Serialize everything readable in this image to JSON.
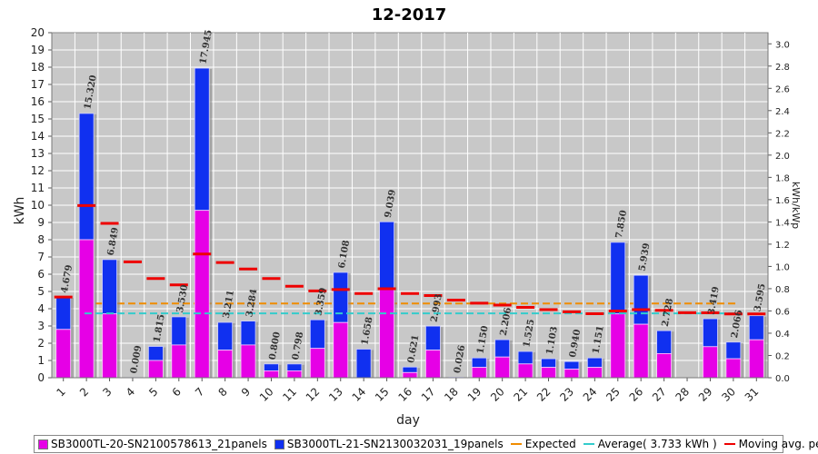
{
  "chart_data": {
    "type": "bar",
    "title": "12-2017",
    "xlabel": "day",
    "ylabel": "kWh",
    "y2label": "kWh/kWp",
    "ylim": [
      0,
      20
    ],
    "y2lim": [
      0,
      3.1
    ],
    "yticks": [
      "0",
      "1",
      "2",
      "3",
      "4",
      "5",
      "6",
      "7",
      "8",
      "9",
      "10",
      "11",
      "12",
      "13",
      "14",
      "15",
      "16",
      "17",
      "18",
      "19",
      "20"
    ],
    "y2ticks": [
      "0.0",
      "0.2",
      "0.4",
      "0.6",
      "0.8",
      "1.0",
      "1.2",
      "1.4",
      "1.6",
      "1.8",
      "2.0",
      "2.2",
      "2.4",
      "2.6",
      "2.8",
      "3.0"
    ],
    "categories": [
      "1",
      "2",
      "3",
      "4",
      "5",
      "6",
      "7",
      "8",
      "9",
      "10",
      "11",
      "12",
      "13",
      "14",
      "15",
      "16",
      "17",
      "18",
      "19",
      "20",
      "21",
      "22",
      "23",
      "24",
      "25",
      "26",
      "27",
      "28",
      "29",
      "30",
      "31"
    ],
    "totals": [
      4.679,
      15.32,
      6.849,
      0.009,
      1.815,
      3.53,
      17.945,
      3.211,
      3.284,
      0.8,
      0.798,
      3.359,
      6.108,
      1.658,
      9.039,
      0.621,
      2.993,
      0.026,
      1.15,
      2.206,
      1.525,
      1.103,
      0.94,
      1.151,
      7.85,
      5.939,
      2.728,
      0.0,
      3.419,
      2.066,
      3.595
    ],
    "total_labels": [
      "4.679",
      "15.320",
      "6.849",
      "0.009",
      "1.815",
      "3.530",
      "17.945",
      "3.211",
      "3.284",
      "0.800",
      "0.798",
      "3.359",
      "6.108",
      "1.658",
      "9.039",
      "0.621",
      "2.993",
      "0.026",
      "1.150",
      "2.206",
      "1.525",
      "1.103",
      "0.940",
      "1.151",
      "7.850",
      "5.939",
      "2.728",
      "",
      "3.419",
      "2.066",
      "3.595"
    ],
    "series": [
      {
        "name": "SB3000TL-20-SN2100578613_21panels",
        "color": "#e600e6",
        "values": [
          2.8,
          8.0,
          3.7,
          0.0,
          1.0,
          1.9,
          9.7,
          1.6,
          1.9,
          0.4,
          0.4,
          1.7,
          3.2,
          0.0,
          5.2,
          0.3,
          1.6,
          0.0,
          0.6,
          1.2,
          0.8,
          0.6,
          0.5,
          0.6,
          3.7,
          3.1,
          1.4,
          0.0,
          1.8,
          1.1,
          2.2
        ]
      },
      {
        "name": "SB3000TL-21-SN2130032031_19panels",
        "color": "#1030f0",
        "values": [
          1.879,
          7.32,
          3.149,
          0.009,
          0.815,
          1.63,
          8.245,
          1.611,
          1.384,
          0.4,
          0.398,
          1.659,
          2.908,
          1.658,
          3.839,
          0.321,
          1.393,
          0.026,
          0.55,
          1.006,
          0.725,
          0.503,
          0.44,
          0.551,
          4.15,
          2.839,
          1.328,
          0.0,
          1.619,
          0.966,
          1.395
        ]
      }
    ],
    "expected": {
      "name": "Expected",
      "value": 4.3,
      "color": "#f08c00"
    },
    "average": {
      "name": "Average",
      "label_text": "Average( 3.733 kWh )",
      "value": 3.733,
      "color": "#33cccc"
    },
    "moving_avg": {
      "name": "Moving avg. per day.",
      "color": "#ee0000",
      "values": [
        4.68,
        9.98,
        8.95,
        6.72,
        5.75,
        5.38,
        7.17,
        6.68,
        6.3,
        5.75,
        5.3,
        5.03,
        5.11,
        4.88,
        5.16,
        4.88,
        4.76,
        4.5,
        4.32,
        4.21,
        4.08,
        3.95,
        3.82,
        3.71,
        3.87,
        3.95,
        3.91,
        3.77,
        3.76,
        3.7,
        3.7
      ]
    }
  },
  "legend": {
    "s1": "SB3000TL-20-SN2100578613_21panels",
    "s2": "SB3000TL-21-SN2130032031_19panels",
    "expected": "Expected",
    "average": "Average( 3.733 kWh )",
    "moving": "Moving avg. per day."
  }
}
